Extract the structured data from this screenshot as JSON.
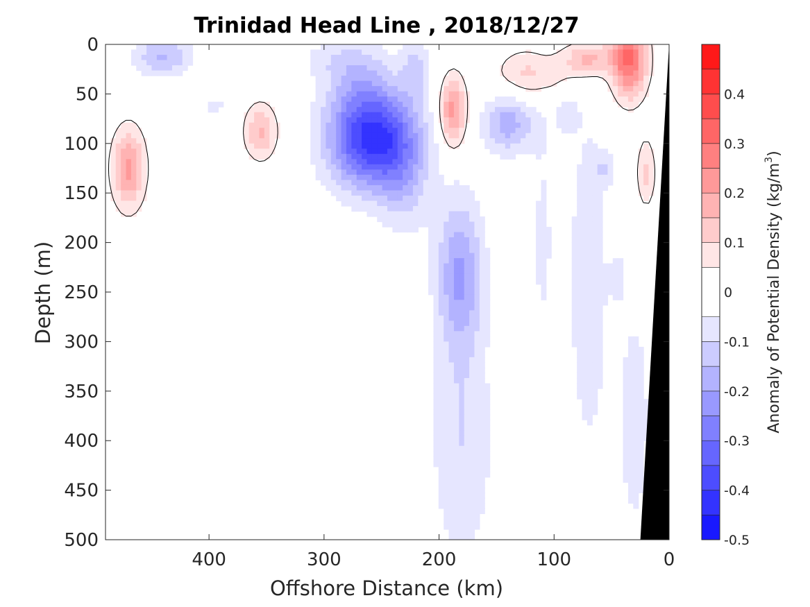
{
  "chart_data": {
    "type": "heatmap",
    "subtype": "filled-contour section",
    "title": "Trinidad Head Line , 2018/12/27",
    "xlabel": "Offshore Distance (km)",
    "ylabel": "Depth (m)",
    "colorbar_label": "Anomaly of Potential Density (kg/m",
    "colorbar_label_superscript": "3",
    "colorbar_label_close": ")",
    "xlim": [
      490,
      0
    ],
    "x_reversed": true,
    "ylim": [
      0,
      500
    ],
    "y_reversed": true,
    "x_ticks": [
      400,
      300,
      200,
      100,
      0
    ],
    "x_tick_labels": [
      "400",
      "300",
      "200",
      "100",
      "0"
    ],
    "y_ticks": [
      0,
      50,
      100,
      150,
      200,
      250,
      300,
      350,
      400,
      450,
      500
    ],
    "y_tick_labels": [
      "0",
      "50",
      "100",
      "150",
      "200",
      "250",
      "300",
      "350",
      "400",
      "450",
      "500"
    ],
    "clim": [
      -0.5,
      0.5
    ],
    "color_levels": [
      -0.5,
      -0.45,
      -0.4,
      -0.35,
      -0.3,
      -0.25,
      -0.2,
      -0.15,
      -0.1,
      -0.05,
      0.05,
      0.1,
      0.15,
      0.2,
      0.25,
      0.3,
      0.35,
      0.4,
      0.45,
      0.5
    ],
    "colorbar_ticks": [
      0.4,
      0.3,
      0.2,
      0.1,
      0,
      -0.1,
      -0.2,
      -0.3,
      -0.4,
      -0.5
    ],
    "colorbar_tick_labels": [
      "0.4",
      "0.3",
      "0.2",
      "0.1",
      "0",
      "-0.1",
      "-0.2",
      "-0.3",
      "-0.4",
      "-0.5"
    ],
    "colormap": "blue-white-red",
    "zero_contour_color": "#000000",
    "bathymetry_color": "#000000",
    "bathymetry": [
      [
        25,
        500
      ],
      [
        0,
        0
      ],
      [
        0,
        500
      ]
    ],
    "features": [
      {
        "x": 470,
        "y": 125,
        "sx": 14,
        "sy": 40,
        "amp": 0.22
      },
      {
        "x": 440,
        "y": 12,
        "sx": 25,
        "sy": 20,
        "amp": -0.16
      },
      {
        "x": 395,
        "y": 62,
        "sx": 12,
        "sy": 8,
        "amp": -0.08
      },
      {
        "x": 355,
        "y": 88,
        "sx": 14,
        "sy": 28,
        "amp": 0.16
      },
      {
        "x": 258,
        "y": 95,
        "sx": 38,
        "sy": 50,
        "amp": -0.43
      },
      {
        "x": 270,
        "y": 30,
        "sx": 28,
        "sy": 40,
        "amp": -0.1
      },
      {
        "x": 230,
        "y": 140,
        "sx": 22,
        "sy": 55,
        "amp": -0.1
      },
      {
        "x": 300,
        "y": 15,
        "sx": 25,
        "sy": 20,
        "amp": -0.05
      },
      {
        "x": 220,
        "y": 25,
        "sx": 12,
        "sy": 28,
        "amp": -0.12
      },
      {
        "x": 188,
        "y": 68,
        "sx": 11,
        "sy": 35,
        "amp": 0.24
      },
      {
        "x": 182,
        "y": 230,
        "sx": 20,
        "sy": 75,
        "amp": -0.2
      },
      {
        "x": 180,
        "y": 400,
        "sx": 28,
        "sy": 130,
        "amp": -0.1
      },
      {
        "x": 140,
        "y": 80,
        "sx": 22,
        "sy": 30,
        "amp": -0.18
      },
      {
        "x": 110,
        "y": 200,
        "sx": 12,
        "sy": 150,
        "amp": -0.06
      },
      {
        "x": 120,
        "y": 30,
        "sx": 30,
        "sy": 25,
        "amp": 0.12
      },
      {
        "x": 70,
        "y": 15,
        "sx": 20,
        "sy": 18,
        "amp": 0.18
      },
      {
        "x": 35,
        "y": 15,
        "sx": 15,
        "sy": 38,
        "amp": 0.32
      },
      {
        "x": 70,
        "y": 240,
        "sx": 18,
        "sy": 190,
        "amp": -0.09
      },
      {
        "x": 90,
        "y": 70,
        "sx": 10,
        "sy": 20,
        "amp": -0.08
      },
      {
        "x": 55,
        "y": 125,
        "sx": 8,
        "sy": 15,
        "amp": -0.09
      },
      {
        "x": 45,
        "y": 235,
        "sx": 5,
        "sy": 20,
        "amp": -0.1
      },
      {
        "x": 20,
        "y": 130,
        "sx": 8,
        "sy": 35,
        "amp": 0.12
      },
      {
        "x": 30,
        "y": 380,
        "sx": 15,
        "sy": 130,
        "amp": -0.08
      }
    ]
  }
}
